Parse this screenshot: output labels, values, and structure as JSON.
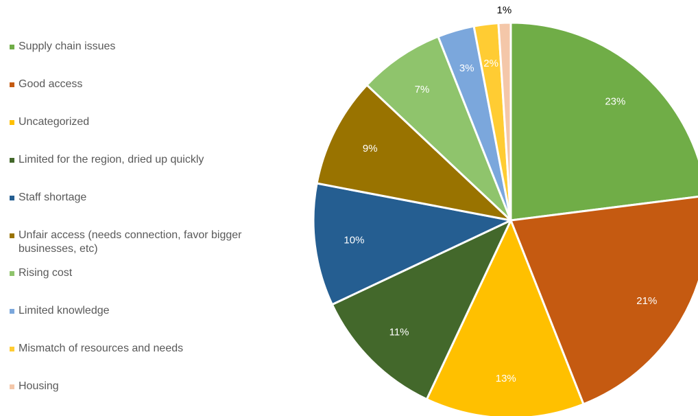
{
  "chart_data": {
    "type": "pie",
    "title": "",
    "legend_position": "left",
    "slices": [
      {
        "label": "Supply chain issues",
        "value": 23,
        "display": "23%",
        "color": "#70AD47",
        "label_color": "#ffffff"
      },
      {
        "label": "Good access",
        "value": 21,
        "display": "21%",
        "color": "#C55A11",
        "label_color": "#ffffff"
      },
      {
        "label": "Uncategorized",
        "value": 13,
        "display": "13%",
        "color": "#FFC000",
        "label_color": "#ffffff"
      },
      {
        "label": "Limited for the region, dried up quickly",
        "value": 11,
        "display": "11%",
        "color": "#43682B",
        "label_color": "#ffffff"
      },
      {
        "label": "Staff shortage",
        "value": 10,
        "display": "10%",
        "color": "#255E91",
        "label_color": "#ffffff"
      },
      {
        "label": "Unfair access (needs connection, favor bigger businesses, etc)",
        "value": 9,
        "display": "9%",
        "color": "#997300",
        "label_color": "#ffffff"
      },
      {
        "label": "Rising cost",
        "value": 7,
        "display": "7%",
        "color": "#8FC46C",
        "label_color": "#ffffff"
      },
      {
        "label": "Limited knowledge",
        "value": 3,
        "display": "3%",
        "color": "#7BA7DC",
        "label_color": "#ffffff"
      },
      {
        "label": "Mismatch of resources and needs",
        "value": 2,
        "display": "2%",
        "color": "#FFCC33",
        "label_color": "#ffffff"
      },
      {
        "label": "Housing",
        "value": 1,
        "display": "1%",
        "color": "#F4C7A9",
        "label_color": "#000000"
      }
    ]
  }
}
